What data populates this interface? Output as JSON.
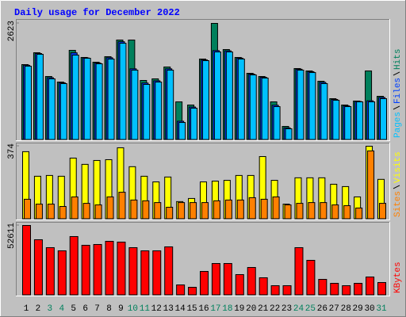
{
  "chart_data": [
    {
      "type": "bar",
      "title": "Daily usage for December 2022",
      "ylim": [
        0,
        2623
      ],
      "yticks": [
        2623
      ],
      "series": [
        {
          "name": "Hits",
          "color": "#00805c",
          "values": [
            1695,
            1962,
            1427,
            1302,
            2016,
            1856,
            1749,
            1873,
            2248,
            2248,
            1338,
            1374,
            1641,
            856,
            785,
            1820,
            2623,
            2034,
            1856,
            1499,
            1427,
            856,
            303,
            1606,
            1552,
            1320,
            928,
            785,
            874,
            1552,
            981
          ]
        },
        {
          "name": "Files",
          "color": "#0040ff",
          "values": [
            1680,
            1945,
            1400,
            1285,
            1960,
            1845,
            1730,
            1850,
            2210,
            1600,
            1280,
            1330,
            1600,
            420,
            740,
            1800,
            2010,
            2005,
            1840,
            1480,
            1410,
            780,
            270,
            1590,
            1535,
            1295,
            910,
            765,
            865,
            880,
            955
          ]
        },
        {
          "name": "Pages",
          "color": "#00c0ff",
          "values": [
            1659,
            1927,
            1374,
            1267,
            1909,
            1838,
            1713,
            1820,
            2176,
            1570,
            1249,
            1302,
            1570,
            392,
            714,
            1784,
            1980,
            1980,
            1820,
            1463,
            1392,
            749,
            250,
            1570,
            1516,
            1267,
            892,
            749,
            856,
            856,
            928
          ]
        }
      ]
    },
    {
      "type": "bar",
      "ylim": [
        0,
        374
      ],
      "yticks": [
        374
      ],
      "series": [
        {
          "name": "Visits",
          "color": "#ffff00",
          "values": [
            346,
            220,
            224,
            220,
            313,
            281,
            301,
            305,
            366,
            269,
            220,
            191,
            216,
            90,
            106,
            191,
            195,
            199,
            224,
            224,
            321,
            199,
            77,
            212,
            212,
            212,
            179,
            167,
            114,
            374,
            204
          ]
        },
        {
          "name": "Sites",
          "color": "#ff8000",
          "values": [
            102,
            77,
            77,
            65,
            114,
            81,
            73,
            114,
            138,
            98,
            94,
            85,
            61,
            85,
            85,
            85,
            94,
            98,
            98,
            110,
            102,
            114,
            73,
            81,
            85,
            85,
            73,
            69,
            57,
            350,
            81
          ]
        }
      ]
    },
    {
      "type": "bar",
      "ylim": [
        0,
        52611
      ],
      "yticks": [
        52611
      ],
      "series": [
        {
          "name": "KBytes",
          "color": "#ff0000",
          "values": [
            52611,
            41860,
            35880,
            33490,
            44250,
            37670,
            38270,
            40660,
            40070,
            35880,
            33490,
            33490,
            36480,
            7770,
            5980,
            17940,
            23920,
            23920,
            15550,
            20930,
            13160,
            7180,
            7180,
            35880,
            26310,
            11960,
            8970,
            7180,
            8970,
            13750,
            9570
          ]
        }
      ],
      "categories": [
        "1",
        "2",
        "3",
        "4",
        "5",
        "6",
        "7",
        "8",
        "9",
        "10",
        "11",
        "12",
        "13",
        "14",
        "15",
        "16",
        "17",
        "18",
        "19",
        "20",
        "21",
        "22",
        "23",
        "24",
        "25",
        "26",
        "27",
        "28",
        "29",
        "30",
        "31"
      ],
      "category_colors": [
        "#000000",
        "#000000",
        "#00805c",
        "#00805c",
        "#000000",
        "#000000",
        "#000000",
        "#000000",
        "#000000",
        "#00805c",
        "#00805c",
        "#000000",
        "#000000",
        "#000000",
        "#000000",
        "#000000",
        "#00805c",
        "#00805c",
        "#000000",
        "#000000",
        "#000000",
        "#000000",
        "#000000",
        "#00805c",
        "#00805c",
        "#000000",
        "#000000",
        "#000000",
        "#000000",
        "#000000",
        "#00805c"
      ]
    }
  ]
}
